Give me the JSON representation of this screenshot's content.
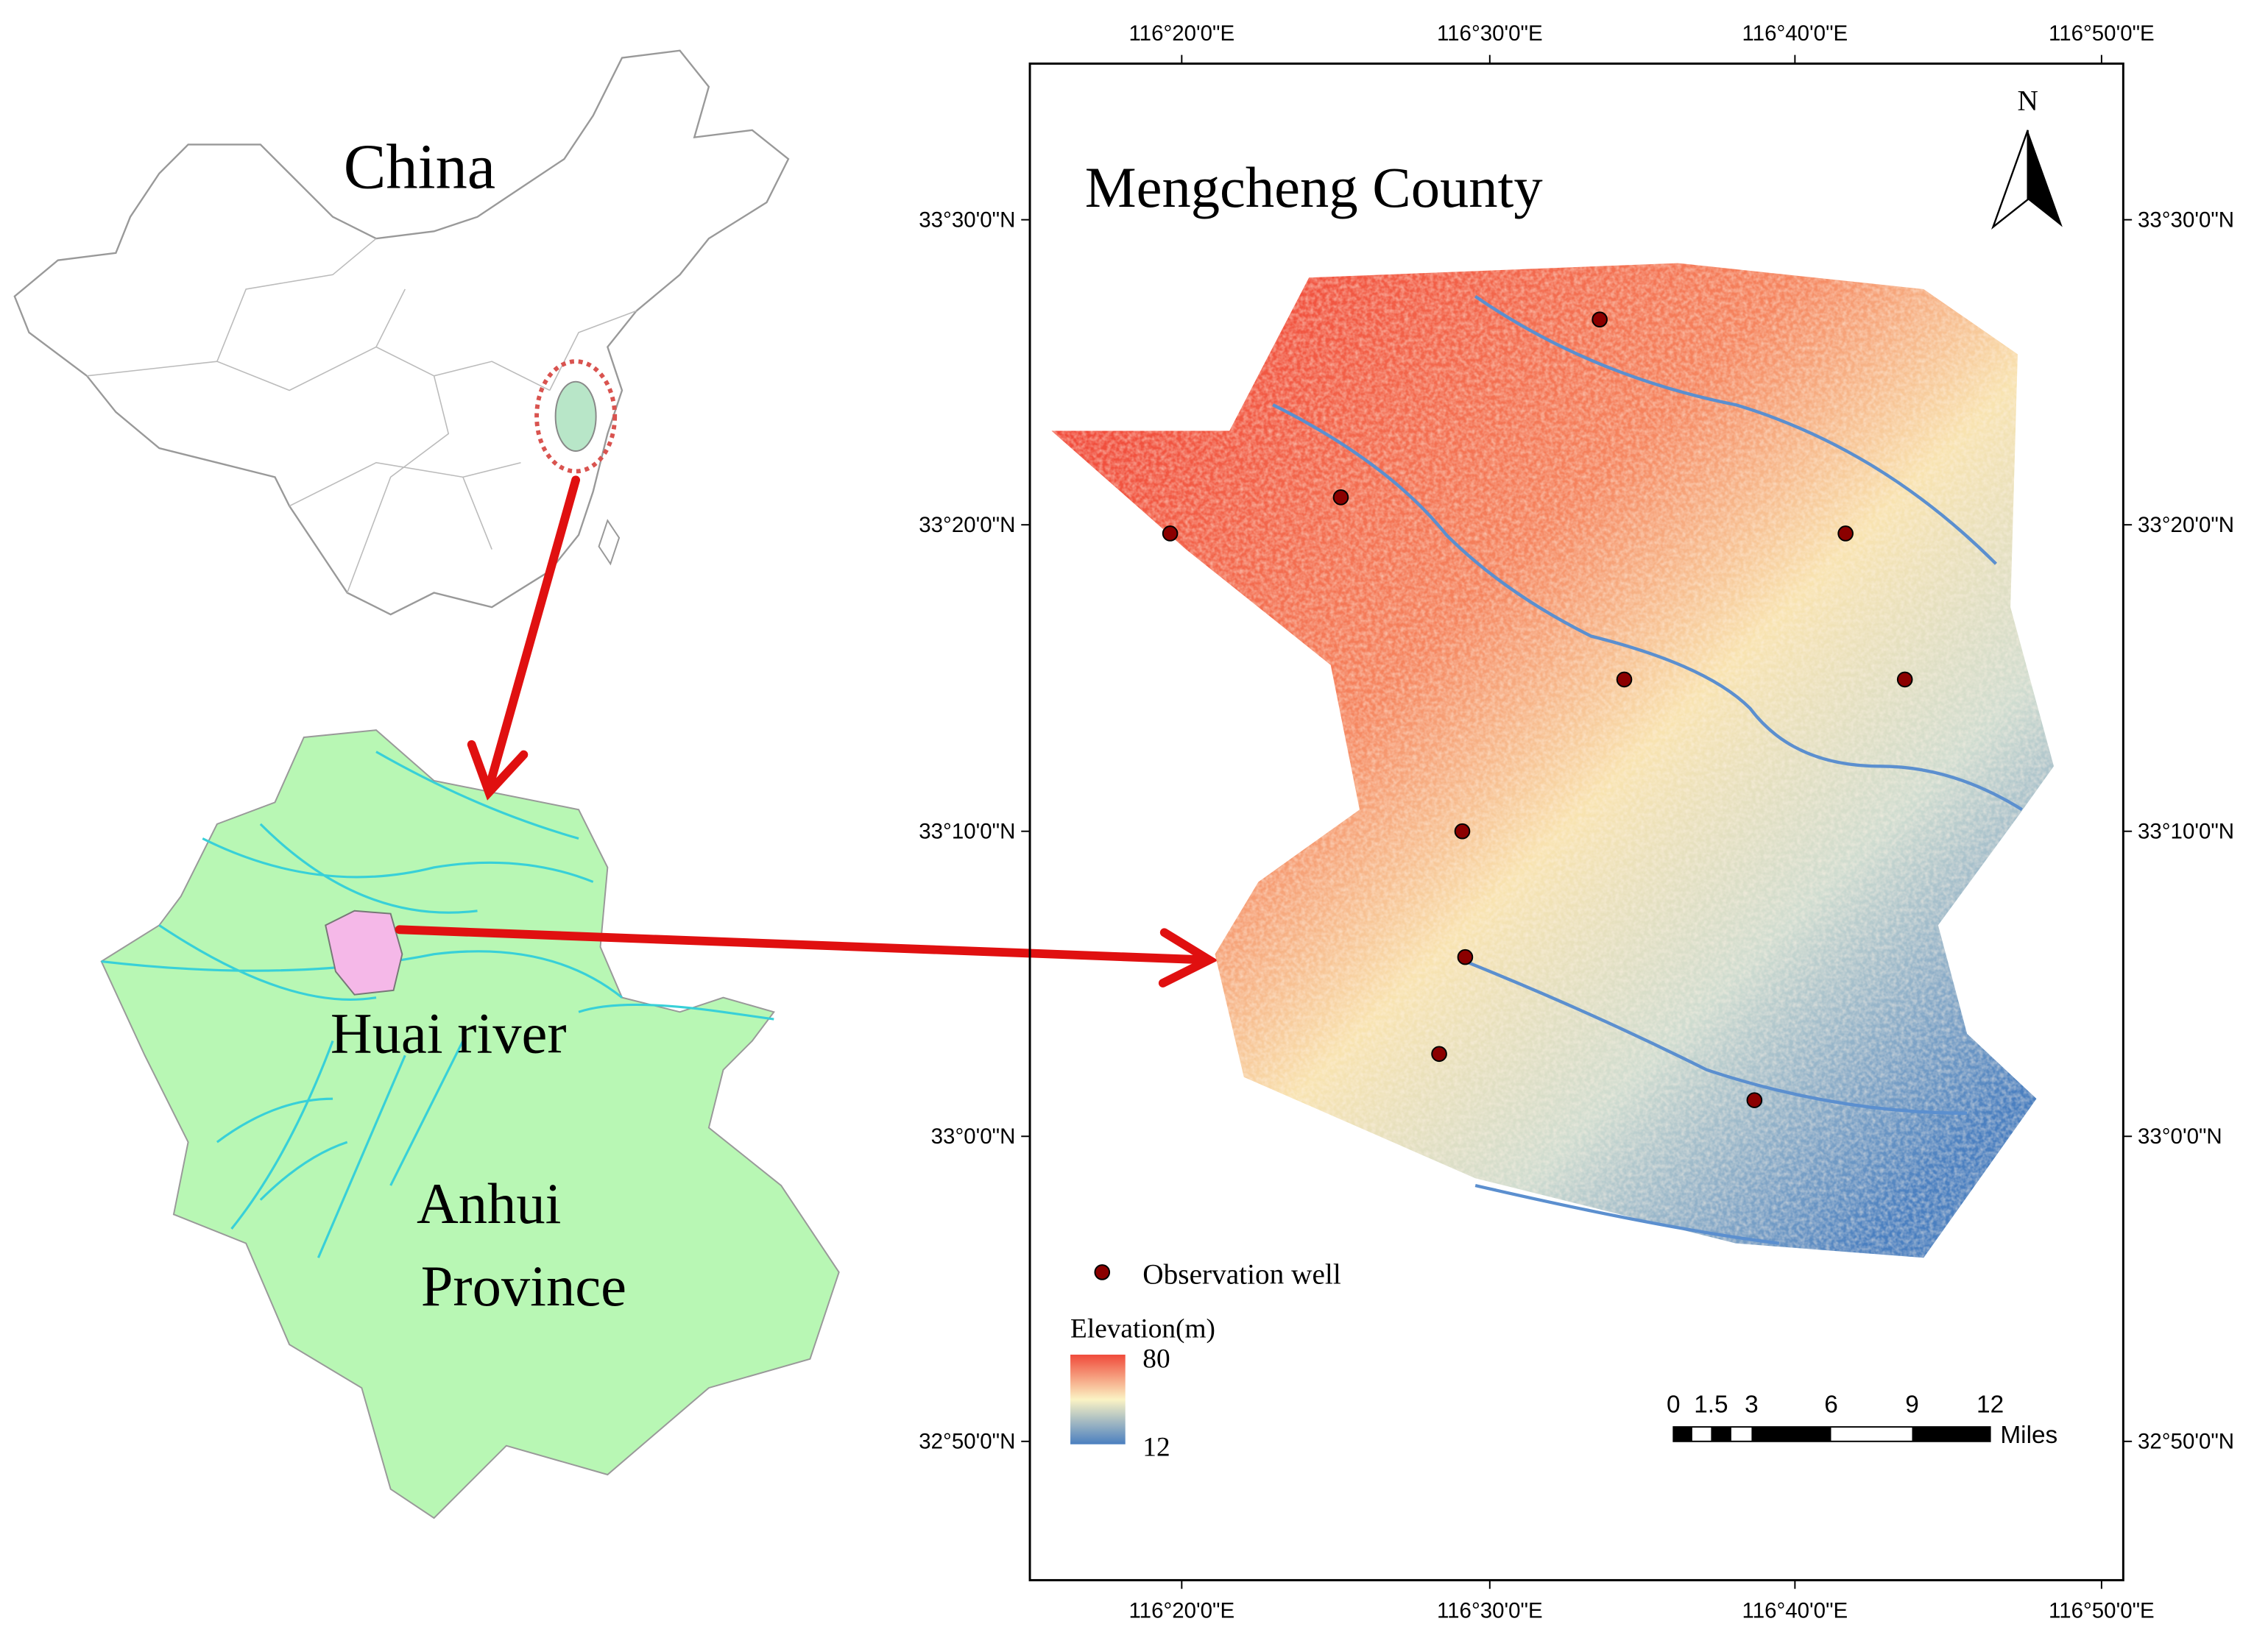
{
  "china_inset": {
    "label": "China"
  },
  "anhui_inset": {
    "river_label": "Huai river",
    "province_label": [
      "Anhui",
      "Province"
    ]
  },
  "map": {
    "title": "Mengcheng County",
    "north": "N",
    "x_ticks": [
      "116°20'0\"E",
      "116°30'0\"E",
      "116°40'0\"E",
      "116°50'0\"E"
    ],
    "y_ticks": [
      "33°30'0\"N",
      "33°20'0\"N",
      "33°10'0\"N",
      "33°0'0\"N",
      "32°50'0\"N"
    ],
    "legend": {
      "well": "Observation well",
      "elevation_title": "Elevation(m)",
      "max": "80",
      "min": "12"
    },
    "scale_bar": {
      "labels": [
        "0",
        "1.5",
        "3",
        "6",
        "9",
        "12"
      ],
      "unit": "Miles"
    }
  }
}
